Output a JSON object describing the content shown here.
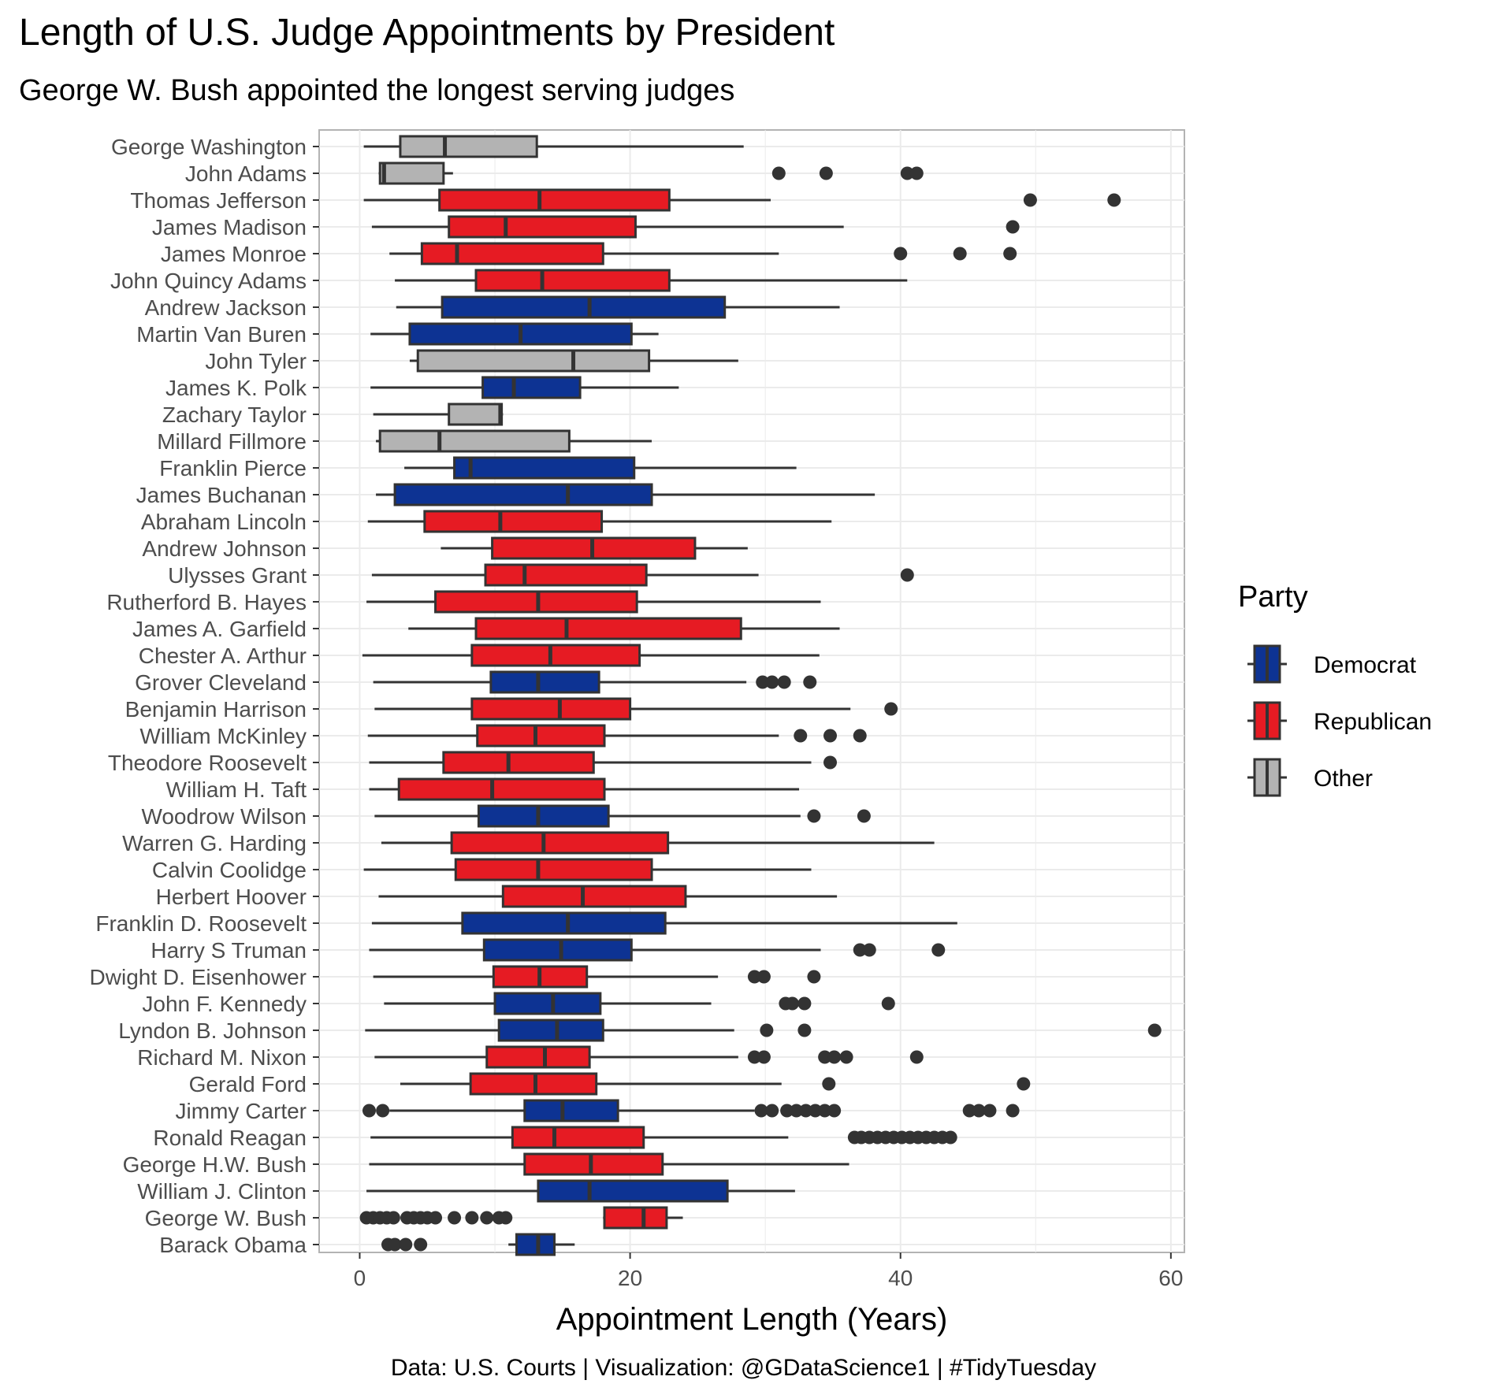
{
  "chart_data": {
    "type": "boxplot",
    "orientation": "horizontal",
    "title": "Length of U.S. Judge Appointments by President",
    "subtitle": "George W. Bush appointed the longest serving judges",
    "xlabel": "Appointment Length (Years)",
    "ylabel": "",
    "xlim": [
      -3,
      61
    ],
    "xticks": [
      0,
      20,
      40,
      60
    ],
    "grid": true,
    "legend": {
      "title": "Party",
      "position": "right",
      "entries": [
        {
          "label": "Democrat",
          "color": "#0d3393"
        },
        {
          "label": "Republican",
          "color": "#e61b23"
        },
        {
          "label": "Other",
          "color": "#b3b3b3"
        }
      ]
    },
    "colors": {
      "Democrat": "#0d3393",
      "Republican": "#e61b23",
      "Other": "#b3b3b3"
    },
    "categories": [
      "George Washington",
      "John Adams",
      "Thomas Jefferson",
      "James Madison",
      "James Monroe",
      "John Quincy Adams",
      "Andrew Jackson",
      "Martin Van Buren",
      "John Tyler",
      "James K. Polk",
      "Zachary Taylor",
      "Millard Fillmore",
      "Franklin Pierce",
      "James Buchanan",
      "Abraham Lincoln",
      "Andrew Johnson",
      "Ulysses Grant",
      "Rutherford B. Hayes",
      "James A. Garfield",
      "Chester A. Arthur",
      "Grover Cleveland",
      "Benjamin Harrison",
      "William McKinley",
      "Theodore Roosevelt",
      "William H. Taft",
      "Woodrow Wilson",
      "Warren G. Harding",
      "Calvin Coolidge",
      "Herbert Hoover",
      "Franklin D. Roosevelt",
      "Harry S Truman",
      "Dwight D. Eisenhower",
      "John F. Kennedy",
      "Lyndon B. Johnson",
      "Richard M. Nixon",
      "Gerald Ford",
      "Jimmy Carter",
      "Ronald Reagan",
      "George H.W. Bush",
      "William J. Clinton",
      "George W. Bush",
      "Barack Obama"
    ],
    "boxes": [
      {
        "party": "Other",
        "min": 0.3,
        "q1": 3.0,
        "median": 6.3,
        "q3": 13.1,
        "max": 28.4,
        "outliers": []
      },
      {
        "party": "Other",
        "min": 1.4,
        "q1": 1.5,
        "median": 1.8,
        "q3": 6.2,
        "max": 6.9,
        "outliers": [
          31.0,
          34.5,
          40.5,
          41.2
        ]
      },
      {
        "party": "Republican",
        "min": 0.3,
        "q1": 5.9,
        "median": 13.3,
        "q3": 22.9,
        "max": 30.4,
        "outliers": [
          49.6,
          55.8
        ]
      },
      {
        "party": "Republican",
        "min": 0.9,
        "q1": 6.6,
        "median": 10.8,
        "q3": 20.4,
        "max": 35.8,
        "outliers": [
          48.3
        ]
      },
      {
        "party": "Republican",
        "min": 2.2,
        "q1": 4.6,
        "median": 7.2,
        "q3": 18.0,
        "max": 31.0,
        "outliers": [
          40.0,
          44.4,
          48.1
        ]
      },
      {
        "party": "Republican",
        "min": 2.6,
        "q1": 8.6,
        "median": 13.5,
        "q3": 22.9,
        "max": 40.5,
        "outliers": []
      },
      {
        "party": "Democrat",
        "min": 2.7,
        "q1": 6.1,
        "median": 17.0,
        "q3": 27.0,
        "max": 35.5,
        "outliers": []
      },
      {
        "party": "Democrat",
        "min": 0.8,
        "q1": 3.7,
        "median": 11.9,
        "q3": 20.1,
        "max": 22.1,
        "outliers": []
      },
      {
        "party": "Other",
        "min": 3.7,
        "q1": 4.3,
        "median": 15.8,
        "q3": 21.4,
        "max": 28.0,
        "outliers": []
      },
      {
        "party": "Democrat",
        "min": 0.8,
        "q1": 9.1,
        "median": 11.4,
        "q3": 16.3,
        "max": 23.6,
        "outliers": []
      },
      {
        "party": "Other",
        "min": 1.0,
        "q1": 6.6,
        "median": 10.4,
        "q3": 10.5,
        "max": 10.6,
        "outliers": []
      },
      {
        "party": "Other",
        "min": 1.2,
        "q1": 1.5,
        "median": 5.9,
        "q3": 15.5,
        "max": 21.6,
        "outliers": []
      },
      {
        "party": "Democrat",
        "min": 3.3,
        "q1": 7.0,
        "median": 8.2,
        "q3": 20.3,
        "max": 32.3,
        "outliers": []
      },
      {
        "party": "Democrat",
        "min": 1.2,
        "q1": 2.6,
        "median": 15.4,
        "q3": 21.6,
        "max": 38.1,
        "outliers": []
      },
      {
        "party": "Republican",
        "min": 0.6,
        "q1": 4.8,
        "median": 10.4,
        "q3": 17.9,
        "max": 34.9,
        "outliers": []
      },
      {
        "party": "Republican",
        "min": 6.0,
        "q1": 9.8,
        "median": 17.2,
        "q3": 24.8,
        "max": 28.7,
        "outliers": []
      },
      {
        "party": "Republican",
        "min": 0.9,
        "q1": 9.3,
        "median": 12.2,
        "q3": 21.2,
        "max": 29.5,
        "outliers": [
          40.5
        ]
      },
      {
        "party": "Republican",
        "min": 0.5,
        "q1": 5.6,
        "median": 13.2,
        "q3": 20.5,
        "max": 34.1,
        "outliers": []
      },
      {
        "party": "Republican",
        "min": 3.6,
        "q1": 8.6,
        "median": 15.3,
        "q3": 28.2,
        "max": 35.5,
        "outliers": []
      },
      {
        "party": "Republican",
        "min": 0.2,
        "q1": 8.3,
        "median": 14.1,
        "q3": 20.7,
        "max": 34.0,
        "outliers": []
      },
      {
        "party": "Democrat",
        "min": 1.0,
        "q1": 9.7,
        "median": 13.2,
        "q3": 17.7,
        "max": 28.6,
        "outliers": [
          29.8,
          30.5,
          31.4,
          33.3
        ]
      },
      {
        "party": "Republican",
        "min": 1.1,
        "q1": 8.3,
        "median": 14.8,
        "q3": 20.0,
        "max": 36.3,
        "outliers": [
          39.3
        ]
      },
      {
        "party": "Republican",
        "min": 0.6,
        "q1": 8.7,
        "median": 13.0,
        "q3": 18.1,
        "max": 31.0,
        "outliers": [
          32.6,
          34.8,
          37.0
        ]
      },
      {
        "party": "Republican",
        "min": 0.7,
        "q1": 6.2,
        "median": 11.0,
        "q3": 17.3,
        "max": 33.4,
        "outliers": [
          34.8
        ]
      },
      {
        "party": "Republican",
        "min": 0.7,
        "q1": 2.9,
        "median": 9.8,
        "q3": 18.1,
        "max": 32.5,
        "outliers": []
      },
      {
        "party": "Democrat",
        "min": 1.1,
        "q1": 8.8,
        "median": 13.2,
        "q3": 18.4,
        "max": 32.6,
        "outliers": [
          33.6,
          37.3
        ]
      },
      {
        "party": "Republican",
        "min": 1.6,
        "q1": 6.8,
        "median": 13.6,
        "q3": 22.8,
        "max": 42.5,
        "outliers": []
      },
      {
        "party": "Republican",
        "min": 0.3,
        "q1": 7.1,
        "median": 13.2,
        "q3": 21.6,
        "max": 33.4,
        "outliers": []
      },
      {
        "party": "Republican",
        "min": 1.4,
        "q1": 10.6,
        "median": 16.5,
        "q3": 24.1,
        "max": 35.3,
        "outliers": []
      },
      {
        "party": "Democrat",
        "min": 0.9,
        "q1": 7.6,
        "median": 15.4,
        "q3": 22.6,
        "max": 44.2,
        "outliers": []
      },
      {
        "party": "Democrat",
        "min": 0.7,
        "q1": 9.2,
        "median": 14.9,
        "q3": 20.1,
        "max": 34.1,
        "outliers": [
          37.0,
          37.7,
          42.8
        ]
      },
      {
        "party": "Republican",
        "min": 1.0,
        "q1": 9.9,
        "median": 13.3,
        "q3": 16.8,
        "max": 26.5,
        "outliers": [
          29.2,
          29.9,
          33.6
        ]
      },
      {
        "party": "Democrat",
        "min": 1.8,
        "q1": 10.0,
        "median": 14.3,
        "q3": 17.8,
        "max": 26.0,
        "outliers": [
          31.5,
          32.0,
          32.9,
          39.1
        ]
      },
      {
        "party": "Democrat",
        "min": 0.4,
        "q1": 10.3,
        "median": 14.6,
        "q3": 18.0,
        "max": 27.7,
        "outliers": [
          30.1,
          32.9,
          58.8
        ]
      },
      {
        "party": "Republican",
        "min": 1.1,
        "q1": 9.4,
        "median": 13.7,
        "q3": 17.0,
        "max": 28.0,
        "outliers": [
          29.2,
          29.9,
          34.4,
          35.1,
          36.0,
          41.2
        ]
      },
      {
        "party": "Republican",
        "min": 3.0,
        "q1": 8.2,
        "median": 13.0,
        "q3": 17.5,
        "max": 31.2,
        "outliers": [
          34.7,
          49.1
        ]
      },
      {
        "party": "Democrat",
        "min": 2.2,
        "q1": 12.2,
        "median": 15.0,
        "q3": 19.1,
        "max": 29.2,
        "outliers": [
          0.7,
          1.7,
          29.7,
          30.5,
          31.6,
          32.3,
          33.0,
          33.7,
          34.4,
          35.1,
          45.1,
          45.8,
          46.6,
          48.3
        ]
      },
      {
        "party": "Republican",
        "min": 0.8,
        "q1": 11.3,
        "median": 14.4,
        "q3": 21.0,
        "max": 31.7,
        "outliers": [
          36.6,
          37.1,
          37.7,
          38.3,
          38.9,
          39.5,
          40.1,
          40.7,
          41.3,
          41.9,
          42.5,
          43.1,
          43.7
        ]
      },
      {
        "party": "Republican",
        "min": 0.7,
        "q1": 12.2,
        "median": 17.1,
        "q3": 22.4,
        "max": 36.2,
        "outliers": []
      },
      {
        "party": "Democrat",
        "min": 0.5,
        "q1": 13.2,
        "median": 17.0,
        "q3": 27.2,
        "max": 32.2,
        "outliers": []
      },
      {
        "party": "Republican",
        "min": 18.0,
        "q1": 18.1,
        "median": 21.0,
        "q3": 22.7,
        "max": 23.9,
        "outliers": [
          0.5,
          1.0,
          1.5,
          2.0,
          2.5,
          3.5,
          4.0,
          4.5,
          5.0,
          5.6,
          7.0,
          8.3,
          9.4,
          10.3,
          10.8
        ]
      },
      {
        "party": "Democrat",
        "min": 11.0,
        "q1": 11.6,
        "median": 13.2,
        "q3": 14.4,
        "max": 15.9,
        "outliers": [
          2.1,
          2.6,
          3.4,
          4.5
        ]
      }
    ],
    "caption": "Data: U.S. Courts  |  Visualization: @GDataScience1  |  #TidyTuesday"
  }
}
